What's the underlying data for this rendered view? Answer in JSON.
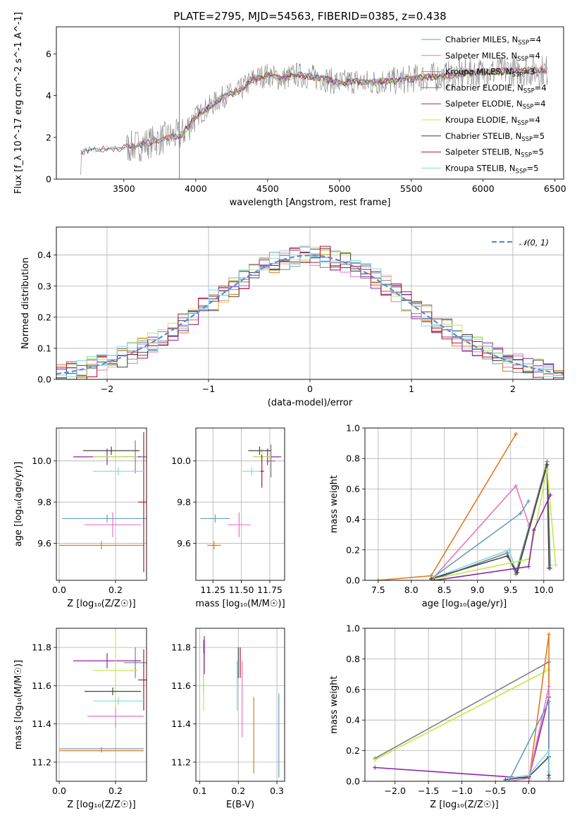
{
  "title": "PLATE=2795, MJD=54563, FIBERID=0385, z=0.438",
  "colors": {
    "Chabrier MILES": "#6a9ec5",
    "Salpeter MILES": "#e377c2",
    "Kroupa MILES": "#e07b20",
    "Chabrier ELODIE": "#7f7f7f",
    "Salpeter ELODIE": "#8e24aa",
    "Kroupa ELODIE": "#c5e84b",
    "Chabrier STELIB": "#444444",
    "Salpeter STELIB": "#b2182b",
    "Kroupa STELIB": "#80d8e8",
    "normal": "#5b8bd8",
    "data": "#808080",
    "grid": "#b0b0b0"
  },
  "legend": [
    {
      "key": "Chabrier MILES",
      "text": "Chabrier MILES, N",
      "sub": "SSP",
      "suffix": "=4"
    },
    {
      "key": "Salpeter MILES",
      "text": "Salpeter MILES, N",
      "sub": "SSP",
      "suffix": "=4"
    },
    {
      "key": "Kroupa MILES",
      "text": "Kroupa MILES, N",
      "sub": "SSP",
      "suffix": "=3"
    },
    {
      "key": "Chabrier ELODIE",
      "text": "Chabrier ELODIE, N",
      "sub": "SSP",
      "suffix": "=4"
    },
    {
      "key": "Salpeter ELODIE",
      "text": "Salpeter ELODIE, N",
      "sub": "SSP",
      "suffix": "=4"
    },
    {
      "key": "Kroupa ELODIE",
      "text": "Kroupa ELODIE, N",
      "sub": "SSP",
      "suffix": "=4"
    },
    {
      "key": "Chabrier STELIB",
      "text": "Chabrier STELIB, N",
      "sub": "SSP",
      "suffix": "=5"
    },
    {
      "key": "Salpeter STELIB",
      "text": "Salpeter STELIB, N",
      "sub": "SSP",
      "suffix": "=5"
    },
    {
      "key": "Kroupa STELIB",
      "text": "Kroupa STELIB, N",
      "sub": "SSP",
      "suffix": "=5"
    }
  ],
  "chart_data": [
    {
      "id": "spectrum",
      "type": "line",
      "xlabel": "wavelength [Angstrom, rest frame]",
      "ylabel": "Flux [f_λ 10^-17 erg cm^-2 s^-1 A^-1]",
      "xlim": [
        3030,
        6560
      ],
      "ylim": [
        0,
        7.3
      ],
      "xticks": [
        3500,
        4000,
        4500,
        5000,
        5500,
        6000,
        6500
      ],
      "yticks": [
        0,
        2,
        4,
        6
      ],
      "grid": false,
      "legend_position": "right",
      "continuum": {
        "x": [
          3200,
          3300,
          3400,
          3500,
          3600,
          3700,
          3800,
          3900,
          4000,
          4100,
          4200,
          4300,
          4400,
          4500,
          4600,
          4700,
          4800,
          4900,
          5000,
          5100,
          5200,
          5300,
          5400,
          5500,
          5600,
          5700,
          5800,
          5900,
          6000,
          6100,
          6200,
          6300,
          6400
        ],
        "y": [
          1.3,
          1.45,
          1.45,
          1.5,
          1.6,
          1.8,
          2.0,
          2.1,
          3.0,
          3.5,
          4.0,
          4.2,
          4.8,
          5.0,
          4.8,
          5.0,
          4.9,
          4.8,
          4.6,
          4.7,
          4.6,
          4.7,
          4.7,
          4.8,
          4.9,
          4.9,
          5.0,
          5.1,
          5.1,
          5.15,
          5.2,
          5.2,
          5.2
        ]
      }
    },
    {
      "id": "residuals",
      "type": "histogram",
      "xlabel": "(data-model)/error",
      "ylabel": "Normed distribution",
      "xlim": [
        -2.5,
        2.5
      ],
      "ylim": [
        0,
        0.49
      ],
      "xticks": [
        -2,
        -1,
        0,
        1,
        2
      ],
      "yticks": [
        0.0,
        0.1,
        0.2,
        0.3,
        0.4
      ],
      "grid": true,
      "legend": "𝒩(0, 1)",
      "legend_position": "top-right",
      "bin_width": 0.1
    },
    {
      "id": "age-vs-Z",
      "type": "errorbar",
      "xlabel": "Z [log₁₀(Z/Z☉)]",
      "ylabel": "age  [log₁₀(age/yr)]",
      "xlim": [
        -0.01,
        0.31
      ],
      "ylim": [
        9.42,
        10.16
      ],
      "xticks": [
        0.0,
        0.2
      ],
      "yticks": [
        9.6,
        9.8,
        10.0
      ],
      "grid": true,
      "points": [
        {
          "s": "Chabrier MILES",
          "x": 0.17,
          "y": 9.72,
          "xerr": 0.16,
          "yerr": 0.02
        },
        {
          "s": "Salpeter MILES",
          "x": 0.19,
          "y": 9.69,
          "xerr": 0.1,
          "yerr": 0.06
        },
        {
          "s": "Kroupa MILES",
          "x": 0.15,
          "y": 9.59,
          "xerr": 0.15,
          "yerr": 0.02
        },
        {
          "s": "Chabrier ELODIE",
          "x": 0.27,
          "y": 10.02,
          "xerr": 0.04,
          "yerr": 0.08
        },
        {
          "s": "Salpeter ELODIE",
          "x": 0.17,
          "y": 10.02,
          "xerr": 0.12,
          "yerr": 0.04
        },
        {
          "s": "Kroupa ELODIE",
          "x": 0.2,
          "y": 10.02,
          "xerr": 0.08,
          "yerr": 0.04
        },
        {
          "s": "Chabrier STELIB",
          "x": 0.185,
          "y": 10.05,
          "xerr": 0.1,
          "yerr": 0.02
        },
        {
          "s": "Salpeter STELIB",
          "x": 0.3,
          "y": 9.8,
          "xerr": 0.02,
          "yerr": 0.34
        },
        {
          "s": "Kroupa STELIB",
          "x": 0.21,
          "y": 9.95,
          "xerr": 0.09,
          "yerr": 0.02
        }
      ]
    },
    {
      "id": "age-vs-mass",
      "type": "errorbar",
      "xlabel": "mass [log₁₀(M/M☉)]",
      "ylabel": "",
      "xlim": [
        11.1,
        11.88
      ],
      "ylim": [
        9.42,
        10.16
      ],
      "xticks": [
        11.25,
        11.5,
        11.75
      ],
      "yticks": [
        9.6,
        9.8,
        10.0
      ],
      "grid": true,
      "points": [
        {
          "s": "Chabrier MILES",
          "x": 11.27,
          "y": 9.72,
          "xerr": 0.13,
          "yerr": 0.02
        },
        {
          "s": "Salpeter MILES",
          "x": 11.48,
          "y": 9.69,
          "xerr": 0.1,
          "yerr": 0.06
        },
        {
          "s": "Kroupa MILES",
          "x": 11.26,
          "y": 9.59,
          "xerr": 0.06,
          "yerr": 0.02
        },
        {
          "s": "Chabrier ELODIE",
          "x": 11.76,
          "y": 10.0,
          "xerr": 0.04,
          "yerr": 0.08
        },
        {
          "s": "Salpeter ELODIE",
          "x": 11.73,
          "y": 10.02,
          "xerr": 0.12,
          "yerr": 0.04
        },
        {
          "s": "Kroupa ELODIE",
          "x": 11.68,
          "y": 10.02,
          "xerr": 0.08,
          "yerr": 0.04
        },
        {
          "s": "Chabrier STELIB",
          "x": 11.66,
          "y": 10.05,
          "xerr": 0.1,
          "yerr": 0.02
        },
        {
          "s": "Salpeter STELIB",
          "x": 11.68,
          "y": 9.95,
          "xerr": 0.02,
          "yerr": 0.08
        },
        {
          "s": "Kroupa STELIB",
          "x": 11.59,
          "y": 9.95,
          "xerr": 0.08,
          "yerr": 0.02
        }
      ]
    },
    {
      "id": "massweight-vs-age",
      "type": "line",
      "xlabel": "age  [log₁₀(age/yr)]",
      "ylabel": "mass weight",
      "xlim": [
        7.3,
        10.3
      ],
      "ylim": [
        0.0,
        1.0
      ],
      "xticks": [
        7.5,
        8.0,
        8.5,
        9.0,
        9.5,
        10.0
      ],
      "yticks": [
        0.0,
        0.2,
        0.4,
        0.6,
        0.8,
        1.0
      ],
      "grid": true,
      "series": [
        {
          "s": "Kroupa MILES",
          "x": [
            7.5,
            8.3,
            9.58
          ],
          "y": [
            0.0,
            0.03,
            0.96
          ]
        },
        {
          "s": "Salpeter MILES",
          "x": [
            8.3,
            9.58,
            9.78
          ],
          "y": [
            0.0,
            0.62,
            0.36
          ]
        },
        {
          "s": "Chabrier MILES",
          "x": [
            8.3,
            9.65,
            9.77
          ],
          "y": [
            0.01,
            0.44,
            0.52
          ]
        },
        {
          "s": "Kroupa STELIB",
          "x": [
            8.3,
            9.48,
            9.58,
            10.05,
            10.1
          ],
          "y": [
            0.01,
            0.2,
            0.06,
            0.75,
            0.1
          ]
        },
        {
          "s": "Chabrier ELODIE",
          "x": [
            8.3,
            9.45,
            9.58,
            10.05,
            10.1
          ],
          "y": [
            0.0,
            0.18,
            0.04,
            0.78,
            0.08
          ]
        },
        {
          "s": "Chabrier STELIB",
          "x": [
            8.3,
            9.45,
            9.6,
            10.05,
            10.08
          ],
          "y": [
            0.01,
            0.16,
            0.05,
            0.76,
            0.08
          ]
        },
        {
          "s": "Kroupa ELODIE",
          "x": [
            8.35,
            9.78,
            10.05,
            10.18
          ],
          "y": [
            0.01,
            0.14,
            0.73,
            0.1
          ]
        },
        {
          "s": "Salpeter ELODIE",
          "x": [
            8.35,
            9.77,
            9.85,
            10.1
          ],
          "y": [
            0.0,
            0.09,
            0.33,
            0.56
          ]
        }
      ]
    },
    {
      "id": "mass-vs-Z",
      "type": "errorbar",
      "xlabel": "Z [log₁₀(Z/Z☉)]",
      "ylabel": "mass [log₁₀(M/M☉)]",
      "xlim": [
        -0.01,
        0.31
      ],
      "ylim": [
        11.1,
        11.9
      ],
      "xticks": [
        0.0,
        0.2
      ],
      "yticks": [
        11.2,
        11.4,
        11.6,
        11.8
      ],
      "grid": true,
      "points": [
        {
          "s": "Chabrier MILES",
          "x": 0.15,
          "y": 11.27,
          "xerr": 0.15,
          "yerr": 0.01
        },
        {
          "s": "Salpeter MILES",
          "x": 0.2,
          "y": 11.44,
          "xerr": 0.1,
          "yerr": 0.06
        },
        {
          "s": "Kroupa MILES",
          "x": 0.15,
          "y": 11.26,
          "xerr": 0.15,
          "yerr": 0.01
        },
        {
          "s": "Chabrier ELODIE",
          "x": 0.27,
          "y": 11.72,
          "xerr": 0.04,
          "yerr": 0.08
        },
        {
          "s": "Salpeter ELODIE",
          "x": 0.17,
          "y": 11.73,
          "xerr": 0.12,
          "yerr": 0.04
        },
        {
          "s": "Kroupa ELODIE",
          "x": 0.2,
          "y": 11.68,
          "xerr": 0.08,
          "yerr": 0.2
        },
        {
          "s": "Chabrier STELIB",
          "x": 0.19,
          "y": 11.57,
          "xerr": 0.1,
          "yerr": 0.02
        },
        {
          "s": "Salpeter STELIB",
          "x": 0.3,
          "y": 11.63,
          "xerr": 0.02,
          "yerr": 0.16
        },
        {
          "s": "Kroupa STELIB",
          "x": 0.21,
          "y": 11.52,
          "xerr": 0.09,
          "yerr": 0.02
        }
      ]
    },
    {
      "id": "mass-vs-ebv",
      "type": "errorbar",
      "xlabel": "E(B-V)",
      "ylabel": "",
      "xlim": [
        0.09,
        0.32
      ],
      "ylim": [
        11.1,
        11.9
      ],
      "xticks": [
        0.1,
        0.2,
        0.3
      ],
      "yticks": [
        11.2,
        11.4,
        11.6,
        11.8
      ],
      "grid": true,
      "points": [
        {
          "s": "Chabrier MILES",
          "x": 0.305,
          "y": 11.34,
          "xerr": 0.0,
          "yerr": 0.22
        },
        {
          "s": "Salpeter MILES",
          "x": 0.21,
          "y": 11.53,
          "xerr": 0.0,
          "yerr": 0.2
        },
        {
          "s": "Kroupa MILES",
          "x": 0.24,
          "y": 11.34,
          "xerr": 0.0,
          "yerr": 0.2
        },
        {
          "s": "Chabrier ELODIE",
          "x": 0.11,
          "y": 11.7,
          "xerr": 0.0,
          "yerr": 0.14
        },
        {
          "s": "Salpeter ELODIE",
          "x": 0.112,
          "y": 11.76,
          "xerr": 0.0,
          "yerr": 0.1
        },
        {
          "s": "Kroupa ELODIE",
          "x": 0.11,
          "y": 11.62,
          "xerr": 0.0,
          "yerr": 0.15
        },
        {
          "s": "Chabrier STELIB",
          "x": 0.2,
          "y": 11.72,
          "xerr": 0.0,
          "yerr": 0.08
        },
        {
          "s": "Salpeter STELIB",
          "x": 0.205,
          "y": 11.72,
          "xerr": 0.0,
          "yerr": 0.08
        },
        {
          "s": "Kroupa STELIB",
          "x": 0.197,
          "y": 11.6,
          "xerr": 0.0,
          "yerr": 0.13
        }
      ]
    },
    {
      "id": "massweight-vs-Z",
      "type": "line",
      "xlabel": "Z [log₁₀(Z/Z☉)]",
      "ylabel": "mass weight",
      "xlim": [
        -2.45,
        0.52
      ],
      "ylim": [
        0.0,
        1.0
      ],
      "xticks": [
        -2.0,
        -1.5,
        -1.0,
        -0.5,
        0.0
      ],
      "yticks": [
        0.0,
        0.2,
        0.4,
        0.6,
        0.8,
        1.0
      ],
      "grid": true,
      "series": [
        {
          "s": "Chabrier ELODIE",
          "x": [
            -2.3,
            0.3,
            0.3
          ],
          "y": [
            0.15,
            0.78,
            0.02
          ]
        },
        {
          "s": "Kroupa ELODIE",
          "x": [
            -2.3,
            0.3,
            0.3
          ],
          "y": [
            0.14,
            0.73,
            0.03
          ]
        },
        {
          "s": "Salpeter ELODIE",
          "x": [
            -2.3,
            0.0,
            0.3,
            0.3
          ],
          "y": [
            0.09,
            0.02,
            0.55,
            0.0
          ]
        },
        {
          "s": "Kroupa MILES",
          "x": [
            0.0,
            0.3,
            0.3
          ],
          "y": [
            0.0,
            0.96,
            0.02
          ]
        },
        {
          "s": "Salpeter MILES",
          "x": [
            -0.3,
            0.0,
            0.3,
            0.3
          ],
          "y": [
            0.0,
            0.02,
            0.62,
            0.0
          ]
        },
        {
          "s": "Chabrier MILES",
          "x": [
            -0.3,
            0.3,
            0.3
          ],
          "y": [
            0.0,
            0.52,
            0.02
          ]
        },
        {
          "s": "Chabrier STELIB",
          "x": [
            -0.35,
            0.0,
            0.3,
            0.3
          ],
          "y": [
            0.01,
            0.03,
            0.16,
            0.04
          ]
        },
        {
          "s": "Kroupa STELIB",
          "x": [
            -0.3,
            0.0,
            0.3,
            0.3
          ],
          "y": [
            0.02,
            0.04,
            0.2,
            0.06
          ]
        }
      ]
    }
  ]
}
